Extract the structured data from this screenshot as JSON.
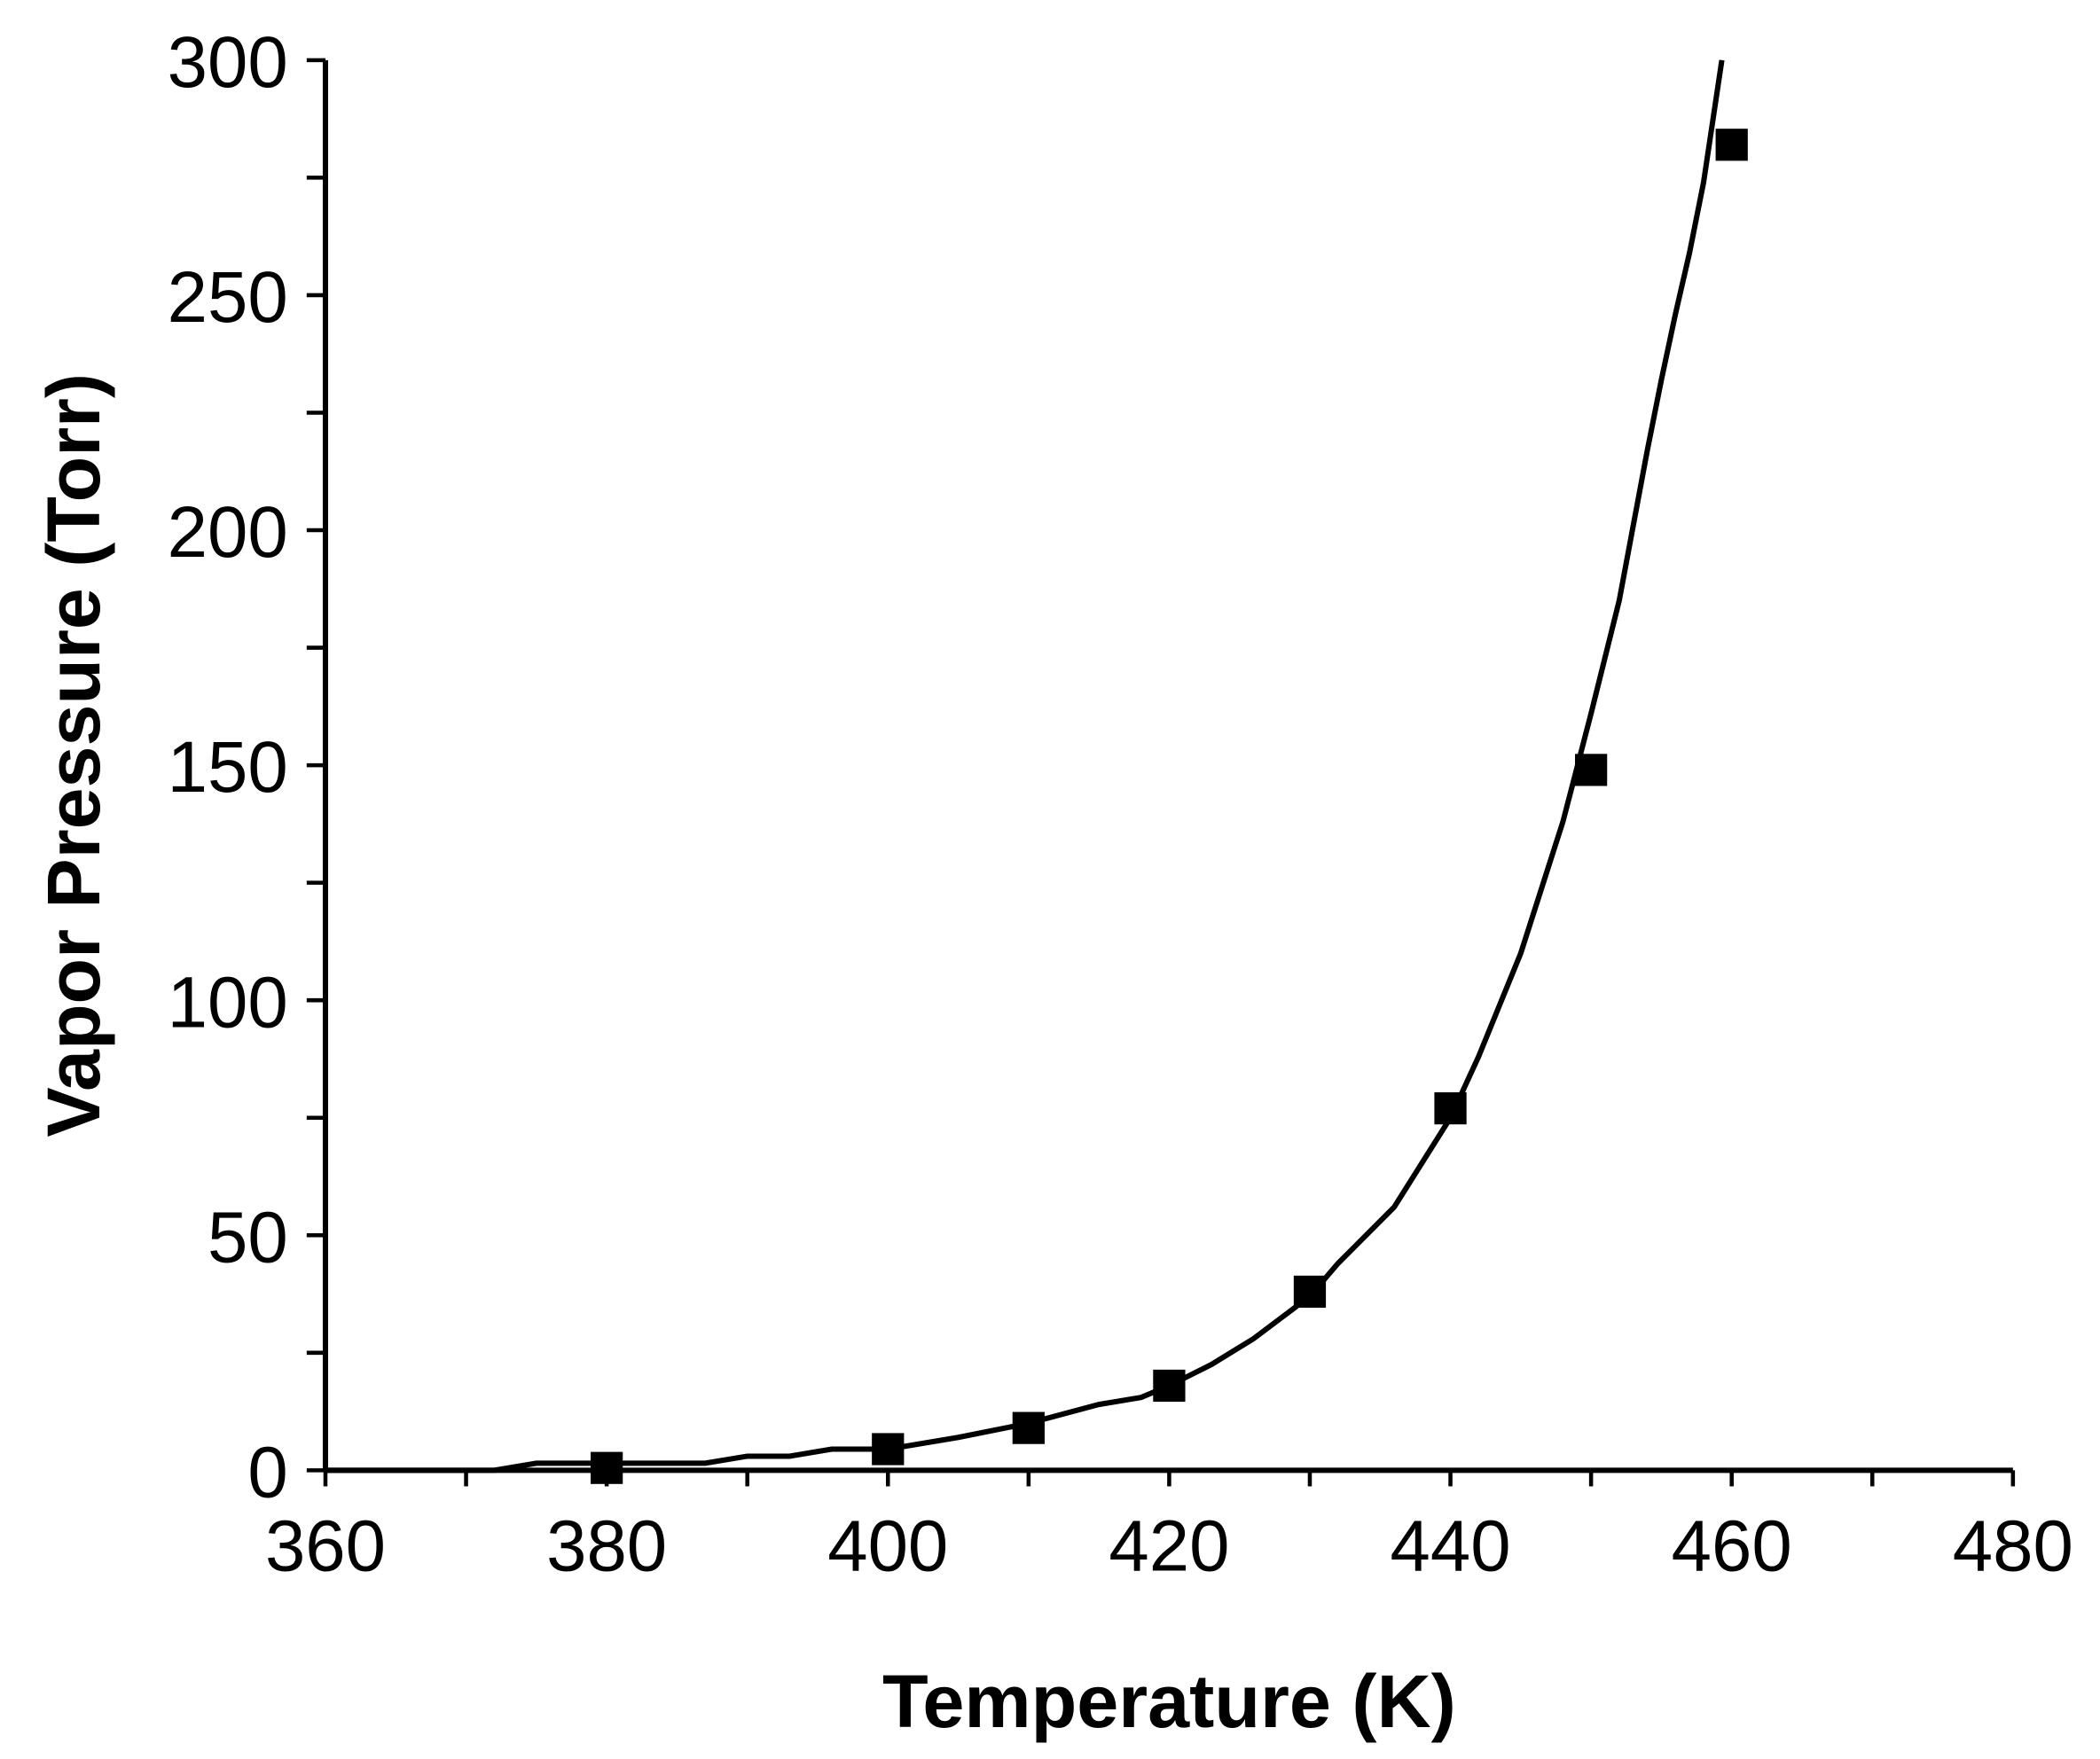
{
  "chart_data": {
    "type": "scatter",
    "x_label": "Temperature (K)",
    "y_label": "Vapor Pressure (Torr)",
    "xlim": [
      360,
      480
    ],
    "xticks": [
      360,
      380,
      400,
      420,
      440,
      460,
      480
    ],
    "xticks_minor": [
      370,
      390,
      410,
      430,
      450,
      470
    ],
    "ylim": [
      0,
      300
    ],
    "yticks": [
      0,
      50,
      100,
      150,
      200,
      250,
      300
    ],
    "yticks_minor": [
      25,
      75,
      125,
      175,
      225,
      275
    ],
    "series": [
      {
        "type": "line",
        "color": "#000000",
        "x": [
          360,
          372,
          375,
          387,
          390,
          393,
          396,
          400,
          405,
          410,
          415,
          418,
          420,
          423,
          426,
          430,
          432,
          436,
          440,
          442,
          445,
          448,
          450,
          452,
          454,
          455,
          456,
          457,
          458,
          459.3
        ],
        "values": [
          0,
          0,
          1.5,
          1.5,
          3,
          3,
          4.5,
          4.5,
          7,
          10,
          14,
          15.5,
          18,
          22.5,
          28,
          37,
          44,
          56,
          75,
          88,
          110,
          138,
          161,
          185,
          217,
          232,
          246,
          259,
          274,
          300
        ]
      },
      {
        "type": "scatter",
        "color": "#000000",
        "x": [
          380,
          400,
          410,
          420,
          430,
          440,
          450,
          460
        ],
        "values": [
          0.5,
          4.5,
          9,
          18,
          38,
          77,
          149,
          282
        ]
      }
    ]
  }
}
